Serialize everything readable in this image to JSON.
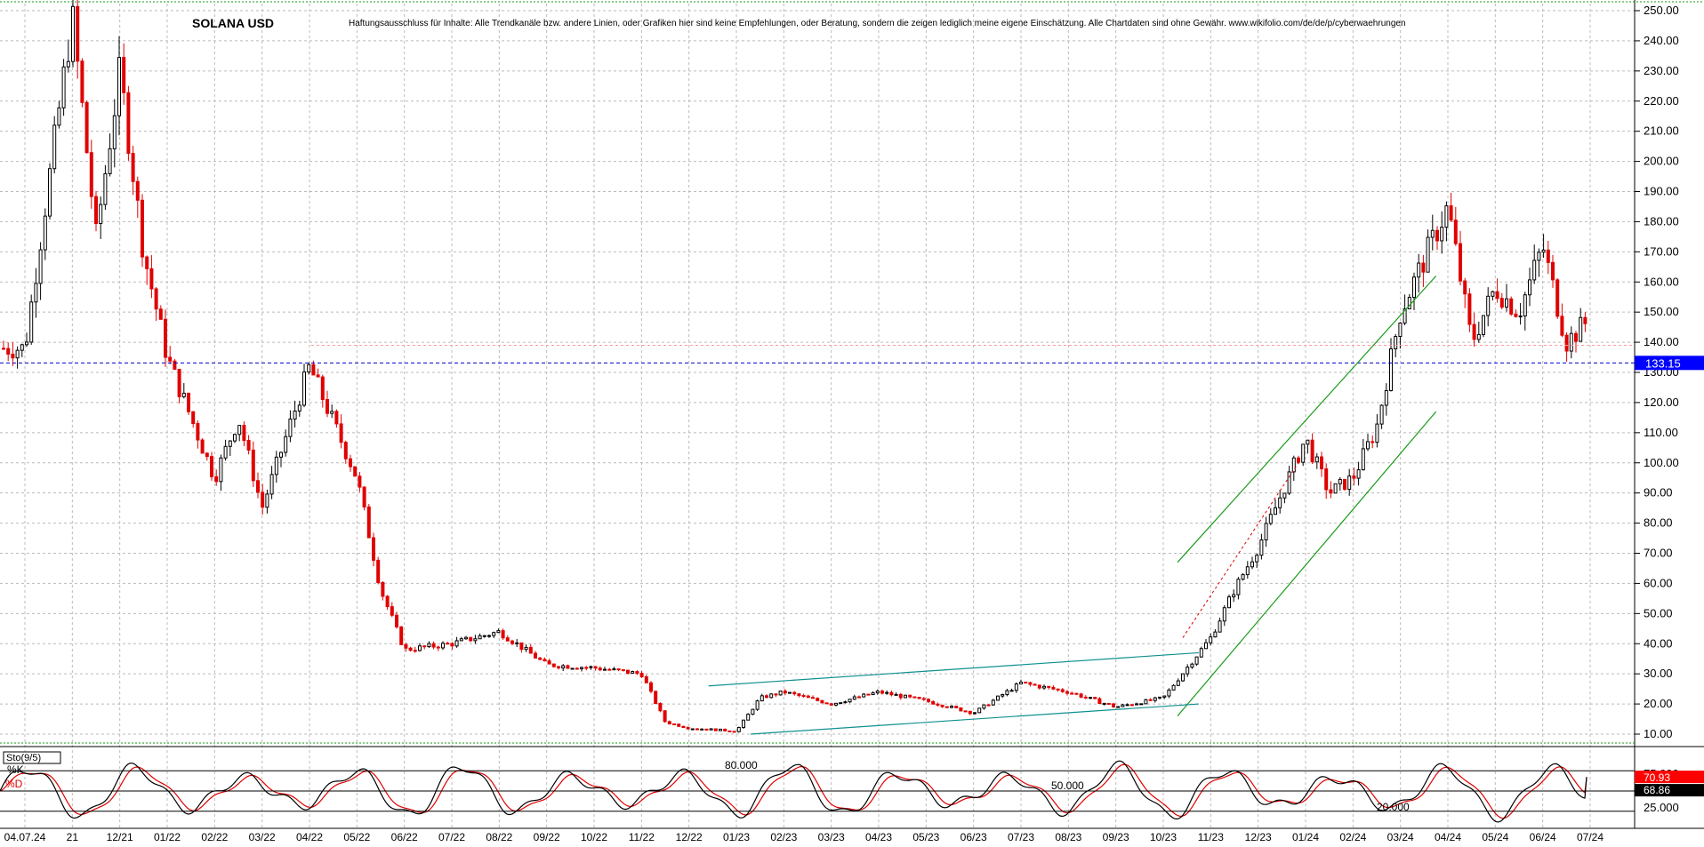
{
  "header": {
    "title": "SOLANA USD",
    "disclaimer": "Haftungsausschluss für Inhalte: Alle Trendkanäle bzw. andere Linien, oder Grafiken hier sind keine Empfehlungen, oder Beratung, sondern die zeigen lediglich meine eigene Einschätzung. Alle Chartdaten sind ohne Gewähr.  www.wikifolio.com/de/de/p/cyberwaehrungen"
  },
  "colors": {
    "up_candle": "#000000",
    "down_candle": "#e00000",
    "grid": "#bbbbbb",
    "current_price_line": "#0000cc",
    "current_price_badge": "#0000ff",
    "channel_green": "#1a9a1a",
    "channel_teal": "#109090",
    "stoch_k": "#000000",
    "stoch_d": "#e00000",
    "stoch_k_badge": "#000000",
    "stoch_d_badge": "#ff0000"
  },
  "chart_data": [
    {
      "type": "candlestick",
      "title": "SOLANA USD",
      "ylim": [
        5,
        255
      ],
      "y_ticks": [
        "10.00",
        "20.00",
        "30.00",
        "40.00",
        "50.00",
        "60.00",
        "70.00",
        "80.00",
        "90.00",
        "100.00",
        "110.00",
        "120.00",
        "130.00",
        "140.00",
        "150.00",
        "160.00",
        "170.00",
        "180.00",
        "190.00",
        "200.00",
        "210.00",
        "220.00",
        "230.00",
        "240.00",
        "250.00"
      ],
      "x_ticks": [
        "04.07.24",
        "21",
        "12/21",
        "01/22",
        "02/22",
        "03/22",
        "04/22",
        "05/22",
        "06/22",
        "07/22",
        "08/22",
        "09/22",
        "10/22",
        "11/22",
        "12/22",
        "01/23",
        "02/23",
        "03/23",
        "04/23",
        "05/23",
        "06/23",
        "07/23",
        "08/23",
        "09/23",
        "10/23",
        "11/23",
        "12/23",
        "01/24",
        "02/24",
        "03/24",
        "04/24",
        "05/24",
        "06/24",
        "07/24"
      ],
      "current_price": 133.15,
      "current_price_label": "133.15",
      "grid": true,
      "close_trace": [
        {
          "x": "04.07.24",
          "y": 138
        },
        {
          "x": "21",
          "y": 248
        },
        {
          "x": "21",
          "y": 175
        },
        {
          "x": "12/21",
          "y": 230
        },
        {
          "x": "12/21",
          "y": 170
        },
        {
          "x": "01/22",
          "y": 135
        },
        {
          "x": "02/22",
          "y": 95
        },
        {
          "x": "02/22",
          "y": 115
        },
        {
          "x": "03/22",
          "y": 85
        },
        {
          "x": "04/22",
          "y": 132
        },
        {
          "x": "05/22",
          "y": 95
        },
        {
          "x": "05/22",
          "y": 58
        },
        {
          "x": "06/22",
          "y": 38
        },
        {
          "x": "07/22",
          "y": 40
        },
        {
          "x": "08/22",
          "y": 44
        },
        {
          "x": "09/22",
          "y": 33
        },
        {
          "x": "10/22",
          "y": 32
        },
        {
          "x": "11/22",
          "y": 30
        },
        {
          "x": "11/22",
          "y": 14
        },
        {
          "x": "12/22",
          "y": 12
        },
        {
          "x": "01/23",
          "y": 11
        },
        {
          "x": "01/23",
          "y": 22
        },
        {
          "x": "02/23",
          "y": 24
        },
        {
          "x": "03/23",
          "y": 20
        },
        {
          "x": "04/23",
          "y": 24
        },
        {
          "x": "05/23",
          "y": 21
        },
        {
          "x": "06/23",
          "y": 17
        },
        {
          "x": "07/23",
          "y": 27
        },
        {
          "x": "08/23",
          "y": 24
        },
        {
          "x": "09/23",
          "y": 19
        },
        {
          "x": "10/23",
          "y": 22
        },
        {
          "x": "11/23",
          "y": 42
        },
        {
          "x": "11/23",
          "y": 58
        },
        {
          "x": "12/23",
          "y": 72
        },
        {
          "x": "01/24",
          "y": 108
        },
        {
          "x": "01/24",
          "y": 90
        },
        {
          "x": "02/24",
          "y": 95
        },
        {
          "x": "02/24",
          "y": 112
        },
        {
          "x": "03/24",
          "y": 150
        },
        {
          "x": "04/24",
          "y": 185
        },
        {
          "x": "04/24",
          "y": 140
        },
        {
          "x": "05/24",
          "y": 158
        },
        {
          "x": "05/24",
          "y": 150
        },
        {
          "x": "06/24",
          "y": 172
        },
        {
          "x": "06/24",
          "y": 140
        },
        {
          "x": "07/24",
          "y": 148
        },
        {
          "x": "07/24",
          "y": 133.15
        }
      ],
      "trendlines": [
        {
          "color": "green",
          "start": {
            "x": "10/23",
            "y": 67
          },
          "end": {
            "x": "03/24",
            "y": 162
          }
        },
        {
          "color": "green",
          "start": {
            "x": "10/23",
            "y": 16
          },
          "end": {
            "x": "03/24",
            "y": 117
          }
        },
        {
          "color": "teal",
          "start": {
            "x": "12/22",
            "y": 26
          },
          "end": {
            "x": "10/23",
            "y": 37
          }
        },
        {
          "color": "teal",
          "start": {
            "x": "01/23",
            "y": 10
          },
          "end": {
            "x": "10/23",
            "y": 20
          }
        }
      ]
    },
    {
      "type": "line",
      "title": "Sto(9/5)",
      "ylim": [
        0,
        100
      ],
      "y_ticks": [
        "25.000",
        "50.000",
        "75.000"
      ],
      "series": [
        {
          "name": "%K",
          "last_value": 70.93,
          "last_label": "70.93"
        },
        {
          "name": "%D",
          "last_value": 68.86,
          "last_label": "68.86"
        }
      ],
      "levels": [
        {
          "value": 80,
          "label": "80.000"
        },
        {
          "value": 50,
          "label": "50.000"
        },
        {
          "value": 20,
          "label": "20.000"
        }
      ]
    }
  ]
}
